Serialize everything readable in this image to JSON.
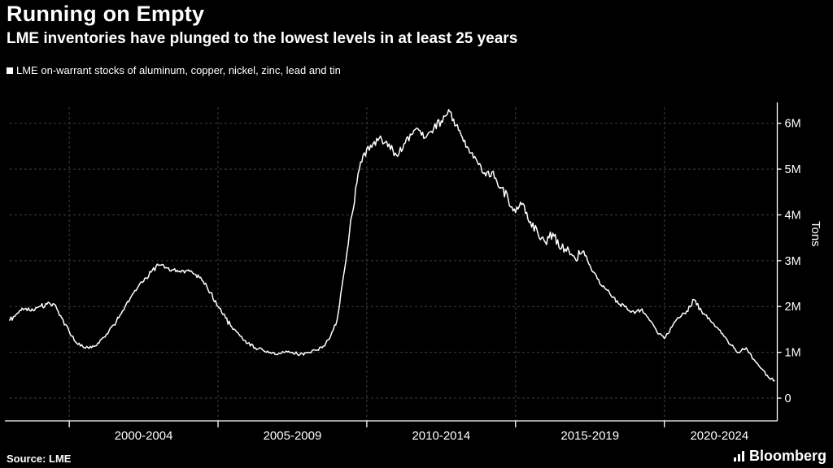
{
  "header": {
    "title": "Running on Empty",
    "subtitle": "LME inventories have plunged to the lowest levels in at least 25 years"
  },
  "legend": {
    "label": "LME on-warrant stocks of aluminum, copper, nickel, zinc, lead and tin"
  },
  "footer": {
    "source": "Source: LME",
    "brand": "Bloomberg"
  },
  "colors": {
    "background": "#000000",
    "text": "#ffffff",
    "line": "#ffffff",
    "grid": "#3e3e3e",
    "axis": "#ffffff"
  },
  "chart_data": {
    "type": "line",
    "title": "Running on Empty",
    "subtitle": "LME inventories have plunged to the lowest levels in at least 25 years",
    "series_name": "LME on-warrant stocks of aluminum, copper, nickel, zinc, lead and tin",
    "ylabel": "Tons",
    "unit": "millions of tons",
    "grid": "dashed",
    "legend_position": "top-left",
    "y_axis_side": "right",
    "xlim": [
      1998,
      2023.7
    ],
    "ylim": [
      0,
      6.35
    ],
    "yticks": [
      {
        "value": 0,
        "label": "0"
      },
      {
        "value": 1,
        "label": "1M"
      },
      {
        "value": 2,
        "label": "2M"
      },
      {
        "value": 3,
        "label": "3M"
      },
      {
        "value": 4,
        "label": "4M"
      },
      {
        "value": 5,
        "label": "5M"
      },
      {
        "value": 6,
        "label": "6M"
      }
    ],
    "x_gridlines": [
      2000,
      2005,
      2010,
      2015,
      2020
    ],
    "x_band_labels": [
      "2000-2004",
      "2005-2009",
      "2010-2014",
      "2015-2019",
      "2020-2024"
    ],
    "points": [
      [
        1998.0,
        1.7
      ],
      [
        1998.25,
        1.85
      ],
      [
        1998.5,
        1.95
      ],
      [
        1998.75,
        1.95
      ],
      [
        1999.0,
        2.0
      ],
      [
        1999.25,
        2.05
      ],
      [
        1999.5,
        2.05
      ],
      [
        1999.75,
        1.75
      ],
      [
        2000.0,
        1.45
      ],
      [
        2000.25,
        1.2
      ],
      [
        2000.5,
        1.1
      ],
      [
        2000.75,
        1.1
      ],
      [
        2001.0,
        1.2
      ],
      [
        2001.25,
        1.4
      ],
      [
        2001.5,
        1.6
      ],
      [
        2001.75,
        1.85
      ],
      [
        2002.0,
        2.1
      ],
      [
        2002.25,
        2.35
      ],
      [
        2002.5,
        2.55
      ],
      [
        2002.75,
        2.75
      ],
      [
        2003.0,
        2.9
      ],
      [
        2003.25,
        2.85
      ],
      [
        2003.5,
        2.8
      ],
      [
        2003.75,
        2.75
      ],
      [
        2004.0,
        2.8
      ],
      [
        2004.25,
        2.7
      ],
      [
        2004.5,
        2.55
      ],
      [
        2004.75,
        2.3
      ],
      [
        2005.0,
        2.0
      ],
      [
        2005.25,
        1.75
      ],
      [
        2005.5,
        1.5
      ],
      [
        2005.75,
        1.35
      ],
      [
        2006.0,
        1.2
      ],
      [
        2006.25,
        1.1
      ],
      [
        2006.5,
        1.05
      ],
      [
        2006.75,
        1.0
      ],
      [
        2007.0,
        0.95
      ],
      [
        2007.25,
        1.0
      ],
      [
        2007.5,
        1.0
      ],
      [
        2007.75,
        0.95
      ],
      [
        2008.0,
        1.0
      ],
      [
        2008.25,
        1.05
      ],
      [
        2008.5,
        1.1
      ],
      [
        2008.75,
        1.3
      ],
      [
        2009.0,
        1.7
      ],
      [
        2009.25,
        2.8
      ],
      [
        2009.5,
        4.0
      ],
      [
        2009.75,
        5.0
      ],
      [
        2010.0,
        5.45
      ],
      [
        2010.25,
        5.6
      ],
      [
        2010.5,
        5.65
      ],
      [
        2010.75,
        5.55
      ],
      [
        2011.0,
        5.3
      ],
      [
        2011.25,
        5.55
      ],
      [
        2011.5,
        5.75
      ],
      [
        2011.75,
        5.85
      ],
      [
        2012.0,
        5.7
      ],
      [
        2012.25,
        5.9
      ],
      [
        2012.5,
        6.05
      ],
      [
        2012.75,
        6.3
      ],
      [
        2013.0,
        5.95
      ],
      [
        2013.25,
        5.6
      ],
      [
        2013.5,
        5.35
      ],
      [
        2013.75,
        5.1
      ],
      [
        2014.0,
        4.85
      ],
      [
        2014.25,
        4.95
      ],
      [
        2014.5,
        4.6
      ],
      [
        2014.75,
        4.35
      ],
      [
        2015.0,
        4.05
      ],
      [
        2015.25,
        4.25
      ],
      [
        2015.5,
        3.85
      ],
      [
        2015.75,
        3.6
      ],
      [
        2016.0,
        3.4
      ],
      [
        2016.25,
        3.6
      ],
      [
        2016.5,
        3.25
      ],
      [
        2016.75,
        3.3
      ],
      [
        2017.0,
        3.05
      ],
      [
        2017.25,
        3.2
      ],
      [
        2017.5,
        2.9
      ],
      [
        2017.75,
        2.6
      ],
      [
        2018.0,
        2.4
      ],
      [
        2018.25,
        2.2
      ],
      [
        2018.5,
        2.05
      ],
      [
        2018.75,
        1.95
      ],
      [
        2019.0,
        1.85
      ],
      [
        2019.25,
        1.95
      ],
      [
        2019.5,
        1.7
      ],
      [
        2019.75,
        1.45
      ],
      [
        2020.0,
        1.3
      ],
      [
        2020.25,
        1.55
      ],
      [
        2020.5,
        1.75
      ],
      [
        2020.75,
        1.9
      ],
      [
        2021.0,
        2.15
      ],
      [
        2021.25,
        1.9
      ],
      [
        2021.5,
        1.75
      ],
      [
        2021.75,
        1.55
      ],
      [
        2022.0,
        1.35
      ],
      [
        2022.25,
        1.15
      ],
      [
        2022.5,
        1.0
      ],
      [
        2022.75,
        1.1
      ],
      [
        2023.0,
        0.85
      ],
      [
        2023.25,
        0.65
      ],
      [
        2023.5,
        0.45
      ],
      [
        2023.7,
        0.38
      ]
    ]
  }
}
